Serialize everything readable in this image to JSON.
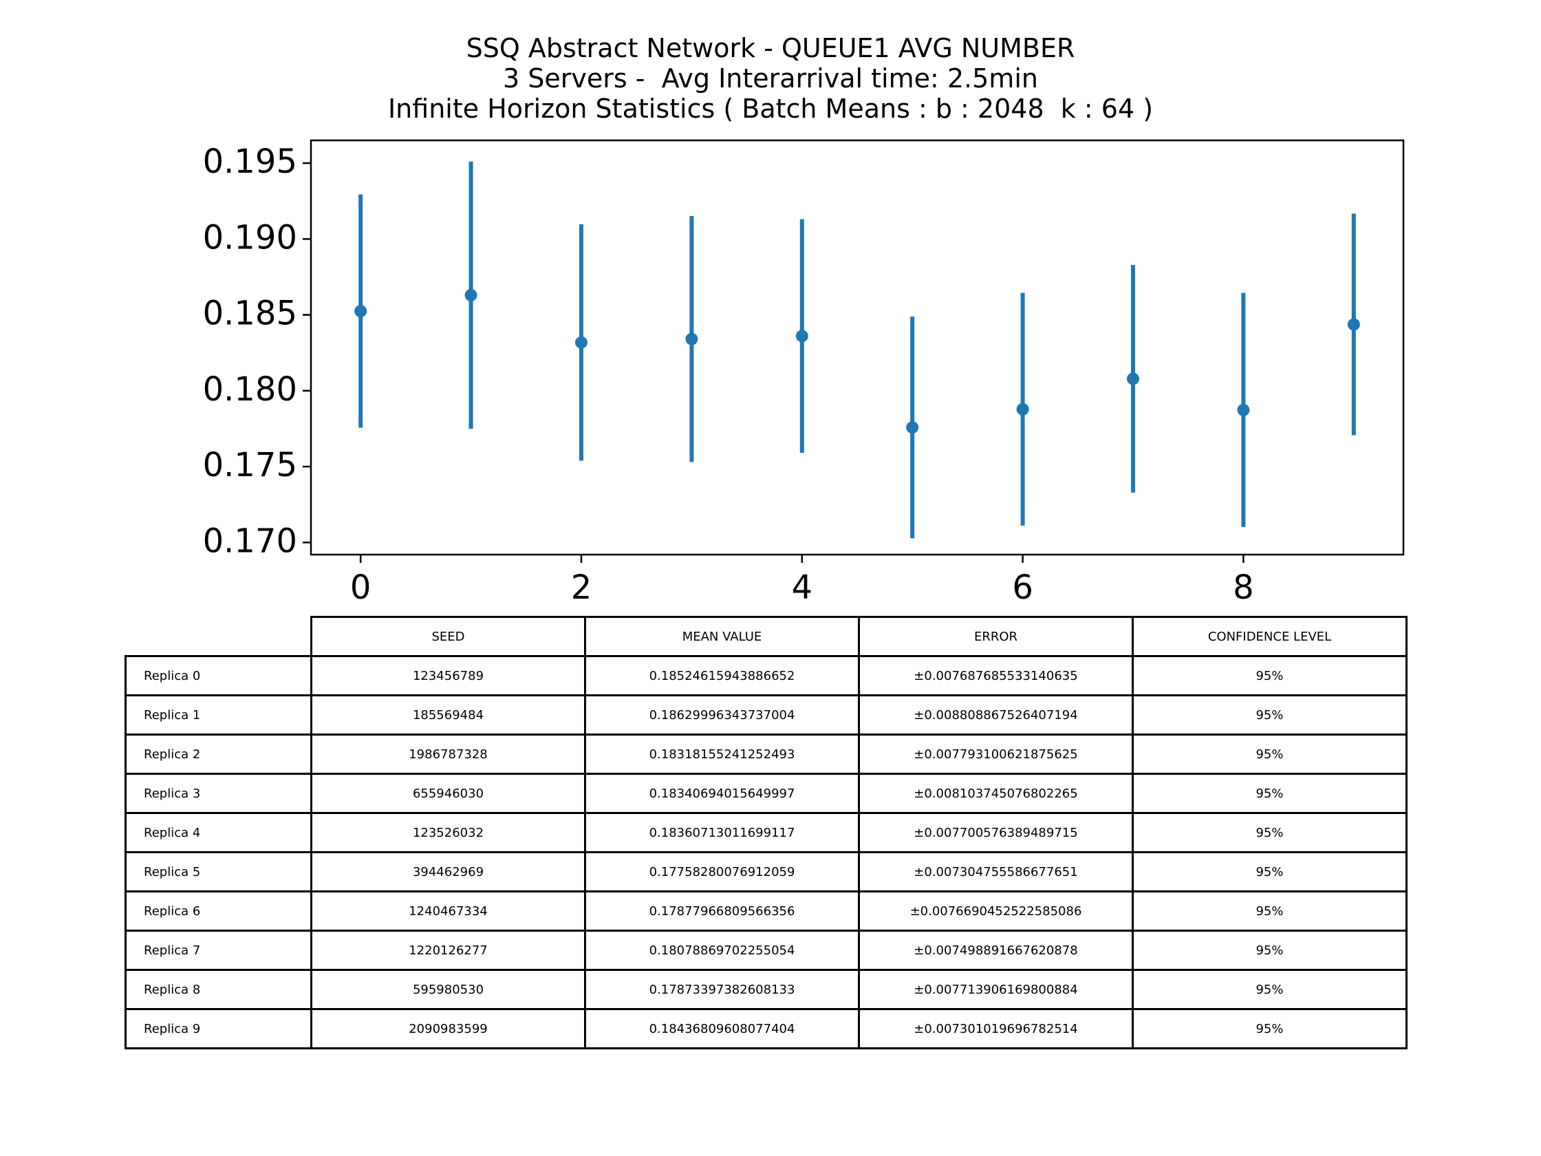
{
  "chart_data": {
    "type": "errorbar",
    "title": [
      "SSQ Abstract Network - QUEUE1 AVG NUMBER",
      "3 Servers -  Avg Interarrival time: 2.5min",
      "Infinite Horizon Statistics ( Batch Means : b : 2048  k : 64 )"
    ],
    "xlabel": "",
    "ylabel": "",
    "xlim": [
      -0.45,
      9.45
    ],
    "ylim": [
      0.1692,
      0.1965
    ],
    "x_ticks": [
      "0",
      "2",
      "4",
      "6",
      "8"
    ],
    "y_ticks": [
      "0.170",
      "0.175",
      "0.180",
      "0.185",
      "0.190",
      "0.195"
    ],
    "x": [
      0,
      1,
      2,
      3,
      4,
      5,
      6,
      7,
      8,
      9
    ],
    "mean": [
      0.18524615943886652,
      0.18629996343737004,
      0.18318155241252493,
      0.18340694015649997,
      0.18360713011699117,
      0.17758280076912059,
      0.17877966809566356,
      0.18078869702255054,
      0.17873397382608133,
      0.18436809608077404
    ],
    "error": [
      0.007687685533140635,
      0.008808867526407194,
      0.007793100621875625,
      0.008103745076802265,
      0.007700576389489715,
      0.007304755586677651,
      0.0076690452522585086,
      0.007498891667620878,
      0.007713906169800884,
      0.007301019696782514
    ],
    "color": "#1f77b4",
    "grid": false
  },
  "table": {
    "headers": [
      "SEED",
      "MEAN VALUE",
      "ERROR",
      "CONFIDENCE LEVEL"
    ],
    "rows": [
      {
        "label": "Replica 0",
        "cells": [
          "123456789",
          "0.18524615943886652",
          "±0.007687685533140635",
          "95%"
        ]
      },
      {
        "label": "Replica 1",
        "cells": [
          "185569484",
          "0.18629996343737004",
          "±0.008808867526407194",
          "95%"
        ]
      },
      {
        "label": "Replica 2",
        "cells": [
          "1986787328",
          "0.18318155241252493",
          "±0.007793100621875625",
          "95%"
        ]
      },
      {
        "label": "Replica 3",
        "cells": [
          "655946030",
          "0.18340694015649997",
          "±0.008103745076802265",
          "95%"
        ]
      },
      {
        "label": "Replica 4",
        "cells": [
          "123526032",
          "0.18360713011699117",
          "±0.007700576389489715",
          "95%"
        ]
      },
      {
        "label": "Replica 5",
        "cells": [
          "394462969",
          "0.17758280076912059",
          "±0.007304755586677651",
          "95%"
        ]
      },
      {
        "label": "Replica 6",
        "cells": [
          "1240467334",
          "0.17877966809566356",
          "±0.0076690452522585086",
          "95%"
        ]
      },
      {
        "label": "Replica 7",
        "cells": [
          "1220126277",
          "0.18078869702255054",
          "±0.007498891667620878",
          "95%"
        ]
      },
      {
        "label": "Replica 8",
        "cells": [
          "595980530",
          "0.17873397382608133",
          "±0.007713906169800884",
          "95%"
        ]
      },
      {
        "label": "Replica 9",
        "cells": [
          "2090983599",
          "0.18436809608077404",
          "±0.007301019696782514",
          "95%"
        ]
      }
    ]
  }
}
